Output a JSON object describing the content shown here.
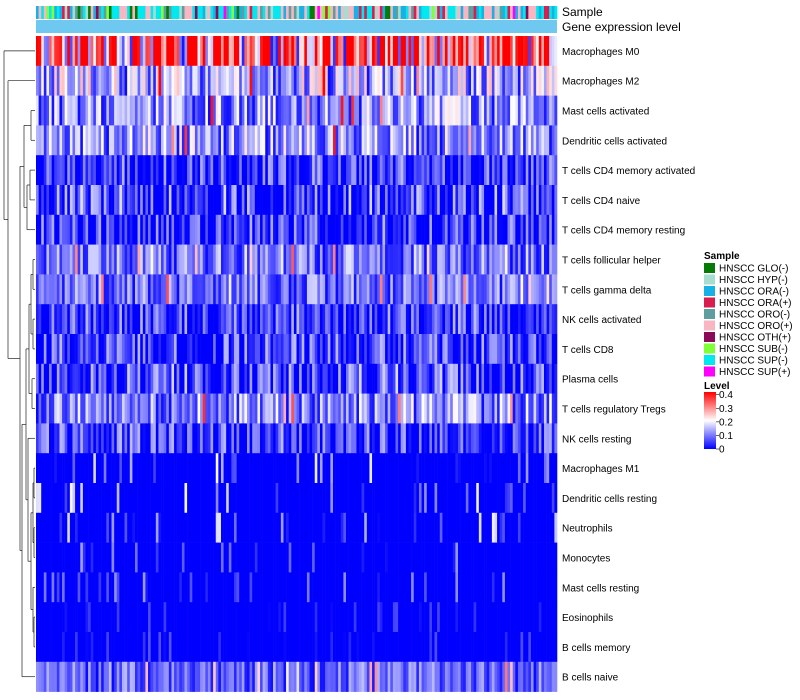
{
  "chart_data": {
    "type": "heatmap",
    "title": "",
    "annotation_tracks": [
      "Sample",
      "Gene expression level"
    ],
    "rows": [
      "Macrophages M0",
      "Macrophages M2",
      "Mast cells activated",
      "Dendritic cells activated",
      "T cells CD4 memory activated",
      "T cells CD4 naive",
      "T cells CD4 memory resting",
      "T cells follicular helper",
      "T cells gamma delta",
      "NK cells activated",
      "T cells CD8",
      "Plasma cells",
      "T cells regulatory  Tregs",
      "NK cells resting",
      "Macrophages M1",
      "Dendritic cells resting",
      "Neutrophils",
      "Monocytes",
      "Mast cells resting",
      "Eosinophils",
      "B cells memory",
      "B cells naive"
    ],
    "row_mean_levels": [
      0.32,
      0.14,
      0.12,
      0.12,
      0.06,
      0.07,
      0.06,
      0.1,
      0.09,
      0.06,
      0.06,
      0.07,
      0.11,
      0.06,
      0.03,
      0.03,
      0.03,
      0.02,
      0.02,
      0.01,
      0.01,
      0.08
    ],
    "column_count": 200,
    "color_scale": {
      "title": "Level",
      "ticks": [
        "0.4",
        "0.3",
        "0.2",
        "0.1",
        "0"
      ],
      "tick_values": [
        0.4,
        0.3,
        0.2,
        0.1,
        0
      ],
      "range": [
        0,
        0.42
      ],
      "colors": [
        "#0000ff",
        "#ffffff",
        "#ff0000"
      ]
    },
    "sample_legend": {
      "title": "Sample",
      "entries": [
        {
          "label": "HNSCC GLO(-)",
          "color": "#067a06"
        },
        {
          "label": "HNSCC HYP(-)",
          "color": "#a6ddd0"
        },
        {
          "label": "HNSCC ORA(-)",
          "color": "#18b1e6"
        },
        {
          "label": "HNSCC ORA(+)",
          "color": "#d71e4e"
        },
        {
          "label": "HNSCC ORO(-)",
          "color": "#5f9ea0"
        },
        {
          "label": "HNSCC ORO(+)",
          "color": "#f7b6c2"
        },
        {
          "label": "HNSCC OTH(+)",
          "color": "#8b0a57"
        },
        {
          "label": "HNSCC SUB(-)",
          "color": "#7fff38"
        },
        {
          "label": "HNSCC SUP(-)",
          "color": "#00e8f0"
        },
        {
          "label": "HNSCC SUP(+)",
          "color": "#ff00ff"
        }
      ]
    },
    "gene_expression_color": "#6ec8f0"
  }
}
